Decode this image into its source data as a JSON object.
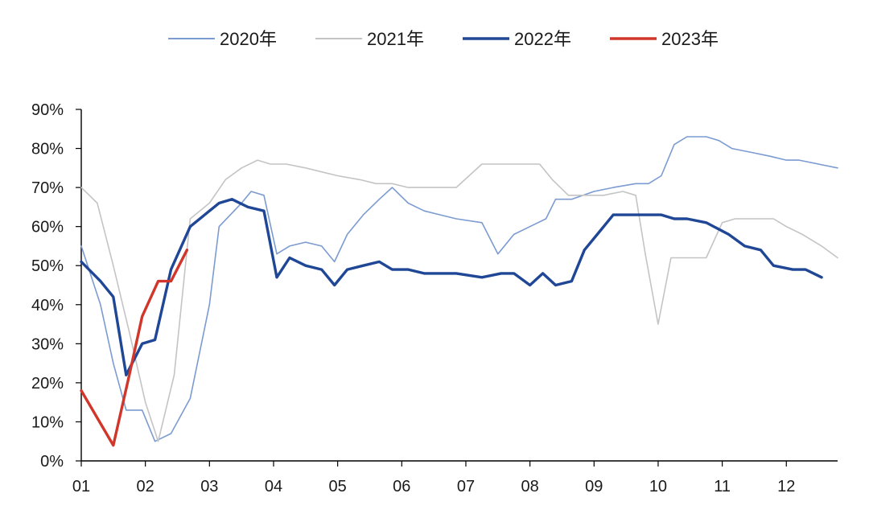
{
  "chart_data": {
    "type": "line",
    "title": "",
    "xlabel": "",
    "ylabel": "",
    "x_ticks": [
      "01",
      "02",
      "03",
      "04",
      "05",
      "06",
      "07",
      "08",
      "09",
      "10",
      "11",
      "12"
    ],
    "y_ticks": [
      "0%",
      "10%",
      "20%",
      "30%",
      "40%",
      "50%",
      "60%",
      "70%",
      "80%",
      "90%"
    ],
    "xlim": [
      1,
      12.8
    ],
    "ylim": [
      0,
      90
    ],
    "grid": false,
    "legend_position": "top-center",
    "series": [
      {
        "name": "2020年",
        "color": "#7b9bd1",
        "width": 1.6,
        "points": [
          [
            1.0,
            55
          ],
          [
            1.3,
            40
          ],
          [
            1.5,
            25
          ],
          [
            1.7,
            13
          ],
          [
            1.95,
            13
          ],
          [
            2.15,
            5
          ],
          [
            2.4,
            7
          ],
          [
            2.7,
            16
          ],
          [
            3.0,
            40
          ],
          [
            3.15,
            60
          ],
          [
            3.5,
            66
          ],
          [
            3.65,
            69
          ],
          [
            3.85,
            68
          ],
          [
            4.05,
            53
          ],
          [
            4.25,
            55
          ],
          [
            4.5,
            56
          ],
          [
            4.75,
            55
          ],
          [
            4.95,
            51
          ],
          [
            5.15,
            58
          ],
          [
            5.4,
            63
          ],
          [
            5.65,
            67
          ],
          [
            5.85,
            70
          ],
          [
            6.1,
            66
          ],
          [
            6.35,
            64
          ],
          [
            6.6,
            63
          ],
          [
            6.85,
            62
          ],
          [
            7.25,
            61
          ],
          [
            7.5,
            53
          ],
          [
            7.75,
            58
          ],
          [
            8.0,
            60
          ],
          [
            8.25,
            62
          ],
          [
            8.4,
            67
          ],
          [
            8.65,
            67
          ],
          [
            9.0,
            69
          ],
          [
            9.3,
            70
          ],
          [
            9.65,
            71
          ],
          [
            9.85,
            71
          ],
          [
            10.05,
            73
          ],
          [
            10.25,
            81
          ],
          [
            10.45,
            83
          ],
          [
            10.75,
            83
          ],
          [
            10.95,
            82
          ],
          [
            11.15,
            80
          ],
          [
            11.45,
            79
          ],
          [
            11.75,
            78
          ],
          [
            12.0,
            77
          ],
          [
            12.2,
            77
          ],
          [
            12.5,
            76
          ],
          [
            12.8,
            75
          ]
        ]
      },
      {
        "name": "2021年",
        "color": "#c4c4c4",
        "width": 1.6,
        "points": [
          [
            1.0,
            70
          ],
          [
            1.25,
            66
          ],
          [
            1.5,
            50
          ],
          [
            1.75,
            33
          ],
          [
            2.0,
            15
          ],
          [
            2.2,
            5
          ],
          [
            2.45,
            22
          ],
          [
            2.7,
            62
          ],
          [
            3.0,
            66
          ],
          [
            3.25,
            72
          ],
          [
            3.5,
            75
          ],
          [
            3.75,
            77
          ],
          [
            3.95,
            76
          ],
          [
            4.2,
            76
          ],
          [
            4.5,
            75
          ],
          [
            4.75,
            74
          ],
          [
            5.0,
            73
          ],
          [
            5.35,
            72
          ],
          [
            5.6,
            71
          ],
          [
            5.85,
            71
          ],
          [
            6.1,
            70
          ],
          [
            6.35,
            70
          ],
          [
            6.6,
            70
          ],
          [
            6.85,
            70
          ],
          [
            7.25,
            76
          ],
          [
            7.55,
            76
          ],
          [
            8.0,
            76
          ],
          [
            8.15,
            76
          ],
          [
            8.35,
            72
          ],
          [
            8.6,
            68
          ],
          [
            8.85,
            68
          ],
          [
            9.15,
            68
          ],
          [
            9.45,
            69
          ],
          [
            9.65,
            68
          ],
          [
            9.8,
            53
          ],
          [
            10.0,
            35
          ],
          [
            10.2,
            52
          ],
          [
            10.45,
            52
          ],
          [
            10.75,
            52
          ],
          [
            11.0,
            61
          ],
          [
            11.2,
            62
          ],
          [
            11.5,
            62
          ],
          [
            11.8,
            62
          ],
          [
            12.0,
            60
          ],
          [
            12.25,
            58
          ],
          [
            12.55,
            55
          ],
          [
            12.8,
            52
          ]
        ]
      },
      {
        "name": "2022年",
        "color": "#1f4796",
        "width": 3.4,
        "points": [
          [
            1.0,
            51
          ],
          [
            1.3,
            46
          ],
          [
            1.5,
            42
          ],
          [
            1.7,
            22
          ],
          [
            1.95,
            30
          ],
          [
            2.15,
            31
          ],
          [
            2.4,
            49
          ],
          [
            2.7,
            60
          ],
          [
            3.0,
            64
          ],
          [
            3.15,
            66
          ],
          [
            3.35,
            67
          ],
          [
            3.6,
            65
          ],
          [
            3.85,
            64
          ],
          [
            4.05,
            47
          ],
          [
            4.25,
            52
          ],
          [
            4.5,
            50
          ],
          [
            4.75,
            49
          ],
          [
            4.95,
            45
          ],
          [
            5.15,
            49
          ],
          [
            5.4,
            50
          ],
          [
            5.65,
            51
          ],
          [
            5.85,
            49
          ],
          [
            6.1,
            49
          ],
          [
            6.35,
            48
          ],
          [
            6.6,
            48
          ],
          [
            6.85,
            48
          ],
          [
            7.25,
            47
          ],
          [
            7.55,
            48
          ],
          [
            7.75,
            48
          ],
          [
            8.0,
            45
          ],
          [
            8.2,
            48
          ],
          [
            8.4,
            45
          ],
          [
            8.65,
            46
          ],
          [
            8.85,
            54
          ],
          [
            9.1,
            59
          ],
          [
            9.3,
            63
          ],
          [
            9.55,
            63
          ],
          [
            9.85,
            63
          ],
          [
            10.05,
            63
          ],
          [
            10.25,
            62
          ],
          [
            10.45,
            62
          ],
          [
            10.75,
            61
          ],
          [
            11.1,
            58
          ],
          [
            11.35,
            55
          ],
          [
            11.6,
            54
          ],
          [
            11.8,
            50
          ],
          [
            12.1,
            49
          ],
          [
            12.3,
            49
          ],
          [
            12.55,
            47
          ]
        ]
      },
      {
        "name": "2023年",
        "color": "#d1362a",
        "width": 3.4,
        "points": [
          [
            1.0,
            18
          ],
          [
            1.25,
            11
          ],
          [
            1.5,
            4
          ],
          [
            1.75,
            22
          ],
          [
            1.95,
            37
          ],
          [
            2.2,
            46
          ],
          [
            2.4,
            46
          ],
          [
            2.65,
            54
          ]
        ]
      }
    ]
  }
}
